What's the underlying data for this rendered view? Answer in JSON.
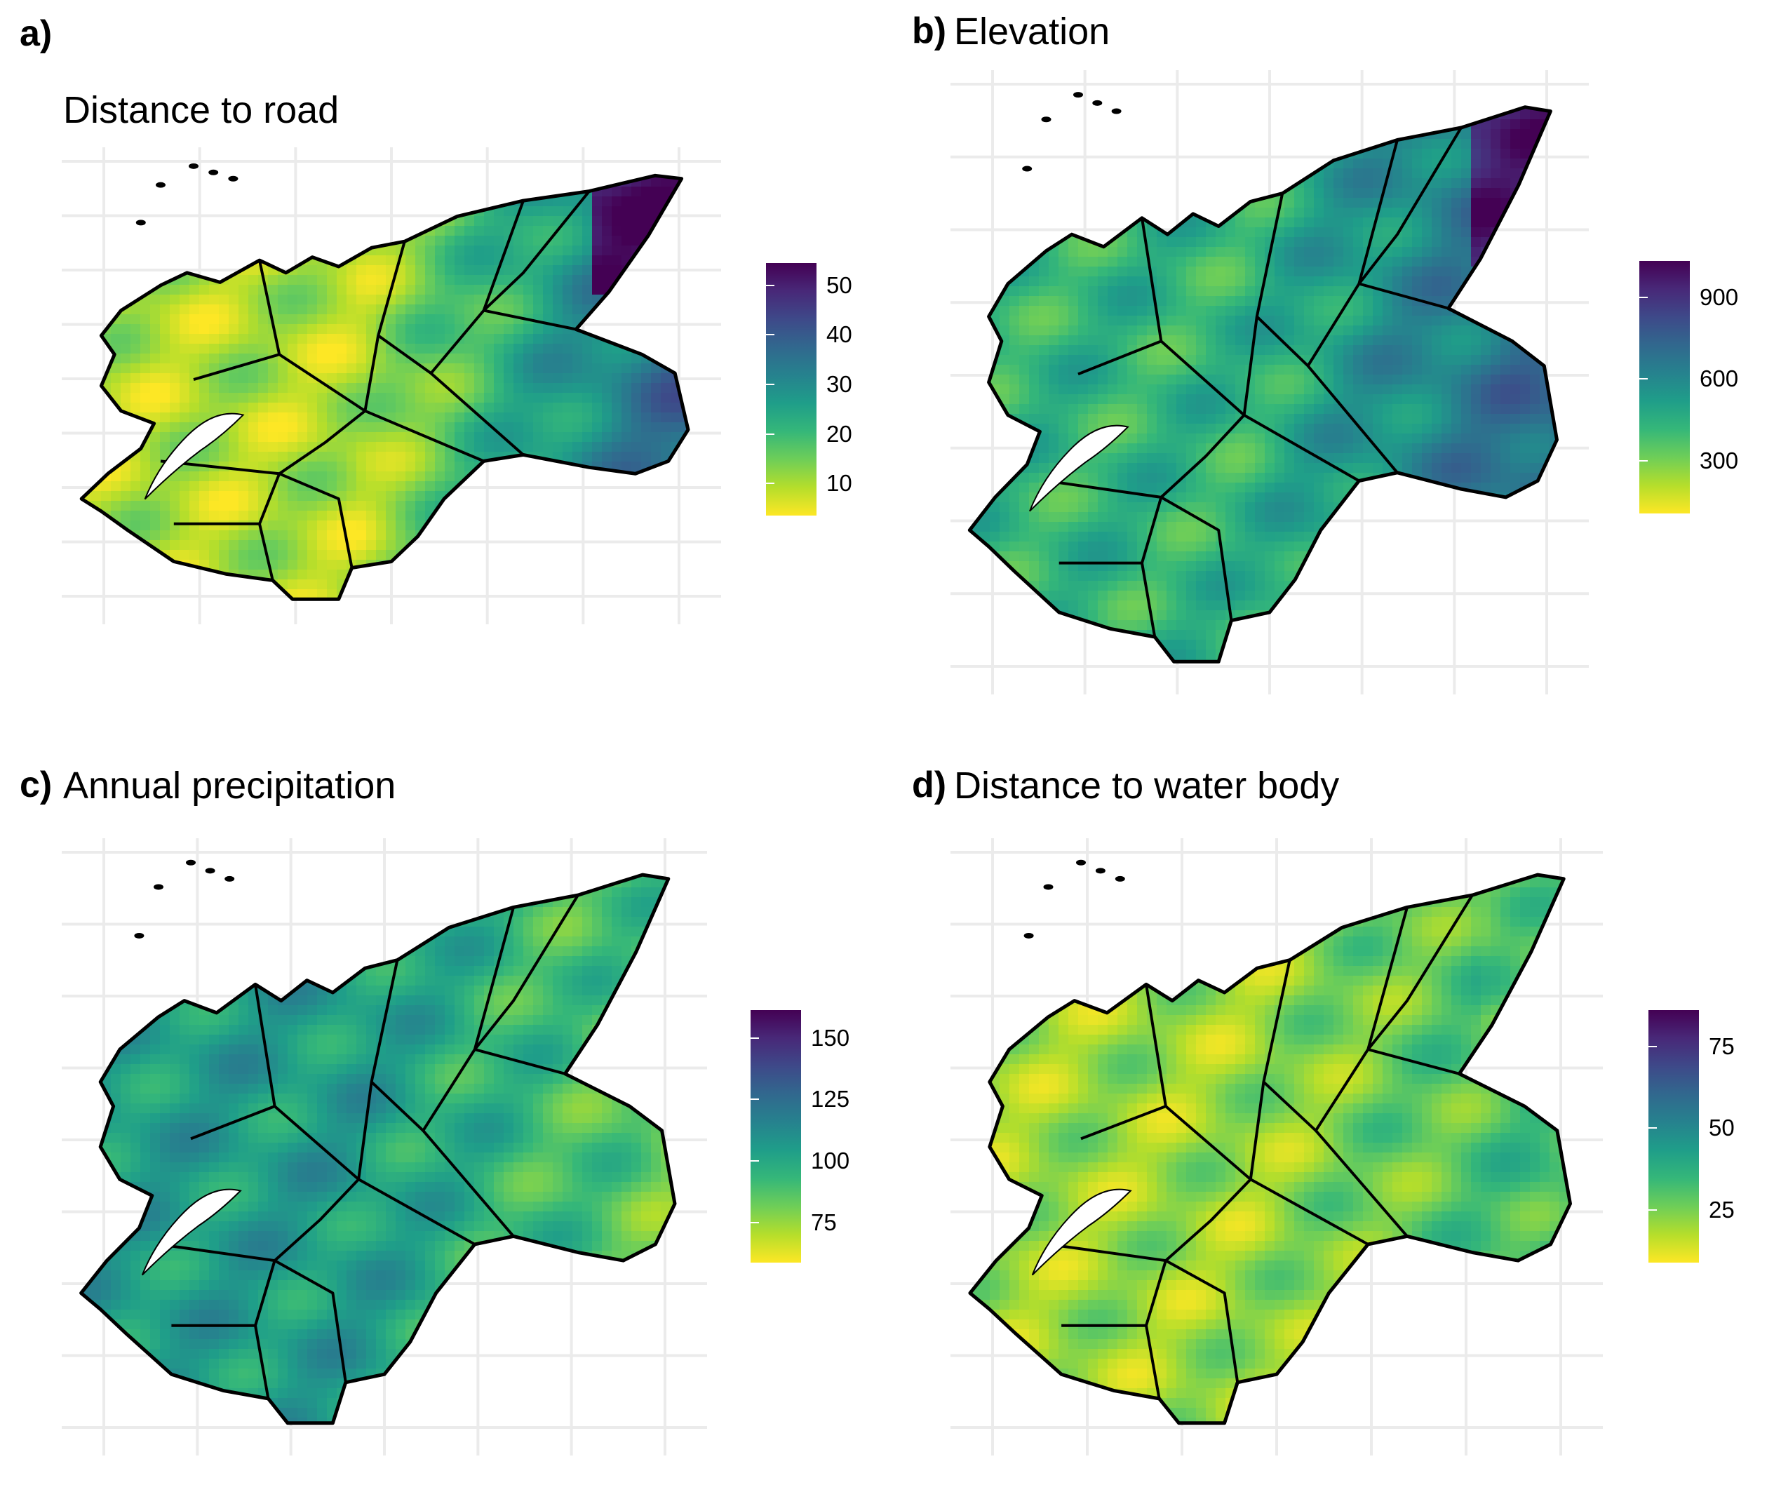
{
  "palette": {
    "viridis": [
      "#fde725",
      "#b5de2b",
      "#6ece58",
      "#35b779",
      "#1f9e89",
      "#26828e",
      "#31688e",
      "#3e4989",
      "#482878",
      "#440154"
    ]
  },
  "panels": [
    {
      "id": "a",
      "tag": "a)",
      "title": "Distance to road",
      "legend": {
        "ticks": [
          "50",
          "40",
          "30",
          "20",
          "10"
        ]
      },
      "fill": {
        "base": 0.12,
        "east": 0.75,
        "north_east_peak": 0.95
      }
    },
    {
      "id": "b",
      "tag": "b)",
      "title": "Elevation",
      "legend": {
        "ticks": [
          "900",
          "600",
          "300"
        ]
      },
      "fill": {
        "base": 0.35,
        "east": 0.72,
        "north_east_peak": 0.9
      }
    },
    {
      "id": "c",
      "tag": "c)",
      "title": "Annual precipitation",
      "legend": {
        "ticks": [
          "150",
          "125",
          "100",
          "75"
        ]
      },
      "fill": {
        "base": 0.45,
        "east": 0.2,
        "north_east_peak": 0.3
      }
    },
    {
      "id": "d",
      "tag": "d)",
      "title": "Distance to water body",
      "legend": {
        "ticks": [
          "75",
          "50",
          "25"
        ]
      },
      "fill": {
        "base": 0.15,
        "east": 0.35,
        "north_east_peak": 0.25
      }
    }
  ]
}
